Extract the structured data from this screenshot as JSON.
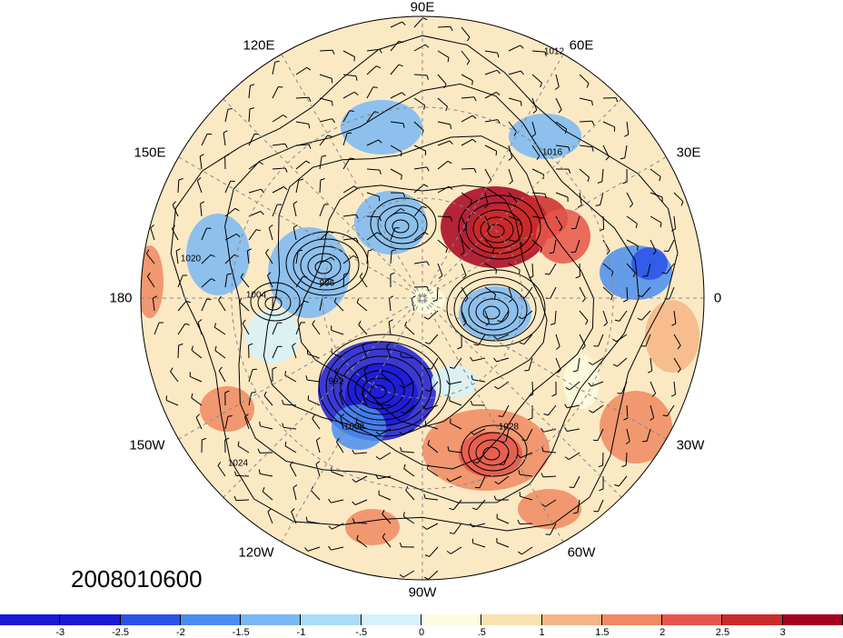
{
  "map": {
    "projection": "north-polar-stereographic",
    "longitude_labels": [
      "90E",
      "60E",
      "30E",
      "0",
      "30W",
      "60W",
      "90W",
      "120W",
      "150W",
      "180",
      "150E",
      "120E"
    ],
    "contour_labels": [
      "1012",
      "1016",
      "1020",
      "1024",
      "996",
      "992",
      "1004",
      "1008",
      "1028"
    ]
  },
  "date_label": "2008010600",
  "colorbar": {
    "ticks": [
      "-3",
      "-2.5",
      "-2",
      "-1.5",
      "-1",
      "-.5",
      "0",
      ".5",
      "1",
      "1.5",
      "2",
      "2.5",
      "3"
    ],
    "colors": [
      "#1a1ad6",
      "#2a52e8",
      "#4a8ef0",
      "#79b8f5",
      "#a8dcf7",
      "#d6f2fa",
      "#fbfbe0",
      "#fbe3b0",
      "#f6b585",
      "#ef8a62",
      "#e6554a",
      "#cc2a2a",
      "#a8001f"
    ]
  }
}
